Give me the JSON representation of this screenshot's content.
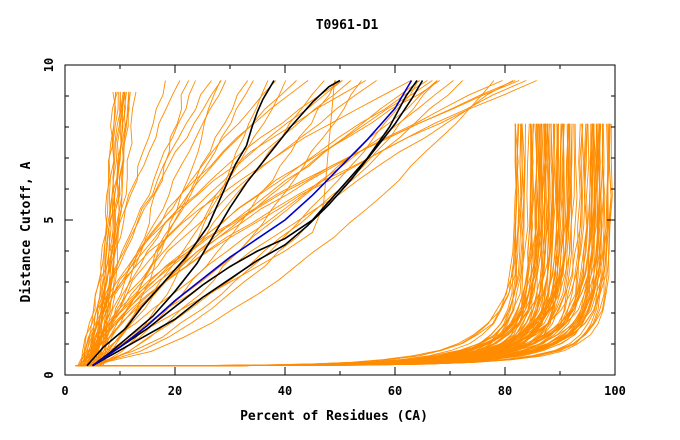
{
  "chart_data": {
    "type": "line",
    "title": "T0961-D1",
    "xlabel": "Percent of Residues (CA)",
    "ylabel": "Distance Cutoff, A",
    "xlim": [
      0,
      100
    ],
    "ylim": [
      0,
      10
    ],
    "xticks": [
      "0",
      "20",
      "40",
      "60",
      "80",
      "100"
    ],
    "yticks": [
      "0",
      "5",
      "10"
    ],
    "grid": false,
    "colors": {
      "background": "#ffffff",
      "frame": "#000000",
      "ensemble": "#ff8c00",
      "highlight_black": "#000000",
      "highlight_blue": "#0000cc"
    },
    "ensemble_note": "approx. 160 orange GDT curves, shown as representative bundles",
    "highlighted_series": [
      {
        "name": "black-1",
        "color": "#000000",
        "x": [
          4,
          7,
          11,
          14,
          18,
          22,
          26,
          29,
          31,
          33,
          34,
          35,
          36,
          37,
          38
        ],
        "y": [
          0.3,
          0.9,
          1.5,
          2.2,
          3.0,
          3.8,
          4.8,
          6.0,
          6.8,
          7.4,
          8.0,
          8.5,
          8.9,
          9.2,
          9.5
        ]
      },
      {
        "name": "black-2",
        "color": "#000000",
        "x": [
          5,
          8,
          12,
          16,
          20,
          24,
          27,
          30,
          33,
          37,
          41,
          45,
          48,
          50
        ],
        "y": [
          0.3,
          0.7,
          1.3,
          1.9,
          2.7,
          3.6,
          4.5,
          5.4,
          6.2,
          7.1,
          8.0,
          8.8,
          9.3,
          9.5
        ]
      },
      {
        "name": "black-3",
        "color": "#000000",
        "x": [
          5,
          10,
          15,
          20,
          25,
          30,
          35,
          40,
          45,
          50,
          55,
          59,
          62,
          64
        ],
        "y": [
          0.3,
          0.9,
          1.5,
          2.2,
          2.9,
          3.5,
          4.0,
          4.4,
          5.0,
          6.0,
          7.0,
          8.0,
          9.0,
          9.5
        ]
      },
      {
        "name": "black-4",
        "color": "#000000",
        "x": [
          5,
          10,
          15,
          20,
          25,
          30,
          35,
          40,
          44,
          48,
          52,
          56,
          60,
          63,
          65
        ],
        "y": [
          0.3,
          0.8,
          1.3,
          1.8,
          2.5,
          3.1,
          3.7,
          4.2,
          4.8,
          5.5,
          6.3,
          7.2,
          8.1,
          8.9,
          9.5
        ]
      },
      {
        "name": "blue",
        "color": "#0000cc",
        "x": [
          5,
          10,
          15,
          20,
          25,
          30,
          35,
          40,
          45,
          50,
          55,
          60,
          63
        ],
        "y": [
          0.3,
          0.9,
          1.6,
          2.4,
          3.1,
          3.8,
          4.4,
          5.0,
          5.8,
          6.7,
          7.6,
          8.6,
          9.5
        ]
      }
    ]
  }
}
